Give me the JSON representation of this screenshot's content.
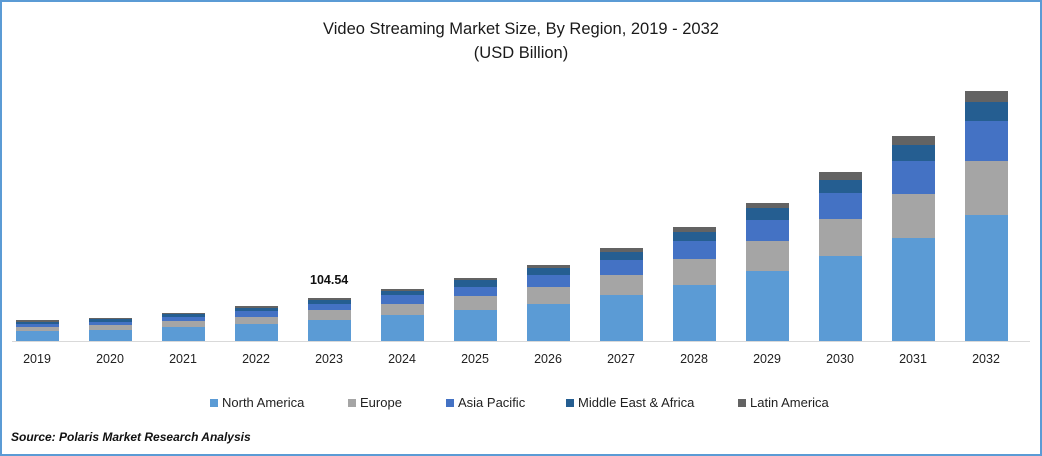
{
  "chart_data": {
    "type": "bar",
    "stacked": true,
    "title": "Video Streaming Market Size, By Region, 2019 - 2032",
    "subtitle": "(USD Billion)",
    "xlabel": "",
    "ylabel": "",
    "categories": [
      "2019",
      "2020",
      "2021",
      "2022",
      "2023",
      "2024",
      "2025",
      "2026",
      "2027",
      "2028",
      "2029",
      "2030",
      "2031",
      "2032"
    ],
    "series": [
      {
        "name": "North America",
        "color": "#5b9bd5",
        "values": [
          24,
          27,
          33,
          41,
          51,
          62,
          76,
          91,
          112,
          137,
          169,
          207,
          251,
          306
        ]
      },
      {
        "name": "Europe",
        "color": "#a5a5a5",
        "values": [
          11,
          12,
          15,
          18,
          24,
          27,
          34,
          41,
          48,
          61,
          73,
          90,
          107,
          131
        ]
      },
      {
        "name": "Asia Pacific",
        "color": "#4472c4",
        "values": [
          7,
          8,
          10,
          13,
          15,
          22,
          22,
          29,
          36,
          44,
          53,
          63,
          80,
          97
        ]
      },
      {
        "name": "Middle East & Africa",
        "color": "#255e91",
        "values": [
          5,
          6,
          7,
          8,
          10,
          10,
          15,
          17,
          19,
          22,
          27,
          32,
          39,
          46
        ]
      },
      {
        "name": "Latin America",
        "color": "#636363",
        "values": [
          3,
          3,
          4,
          5,
          5,
          5,
          5,
          7,
          10,
          12,
          14,
          19,
          22,
          27
        ]
      }
    ],
    "annotations": [
      {
        "category": "2023",
        "text": "104.54"
      }
    ],
    "grid": false,
    "legend_position": "bottom",
    "source": "Source: Polaris  Market Research Analysis"
  },
  "title_line1": "Video Streaming Market Size, By Region, 2019 - 2032",
  "title_line2": "(USD Billion)",
  "annotation_2023": "104.54",
  "legend": [
    "North America",
    "Europe",
    "Asia Pacific",
    "Middle East & Africa",
    "Latin America"
  ],
  "source": "Source: Polaris  Market Research Analysis"
}
